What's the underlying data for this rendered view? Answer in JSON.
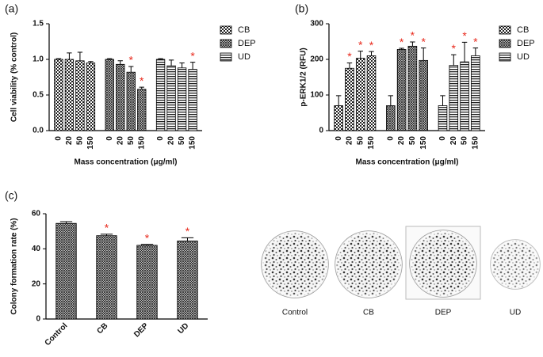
{
  "chart_data": [
    {
      "type": "bar",
      "title": "(a)",
      "y_label": "Cell viability (% control)",
      "x_label": "Mass concentration (μg/ml)",
      "categories": [
        "0",
        "20",
        "50",
        "150"
      ],
      "series": [
        {
          "name": "CB",
          "pattern": "checker",
          "values": [
            1.0,
            1.0,
            0.98,
            0.95
          ],
          "errors": [
            0.01,
            0.09,
            0.12,
            0.02
          ],
          "significant": [
            false,
            false,
            false,
            false
          ]
        },
        {
          "name": "DEP",
          "pattern": "crosshatch",
          "values": [
            1.0,
            0.93,
            0.82,
            0.58
          ],
          "errors": [
            0.01,
            0.05,
            0.08,
            0.03
          ],
          "significant": [
            false,
            false,
            true,
            true
          ]
        },
        {
          "name": "UD",
          "pattern": "horizontal",
          "values": [
            1.0,
            0.91,
            0.88,
            0.86
          ],
          "errors": [
            0.01,
            0.08,
            0.07,
            0.1
          ],
          "significant": [
            false,
            false,
            false,
            true
          ]
        }
      ],
      "significance_label": "*",
      "significance_color": "#e8291c",
      "ylim": [
        0,
        1.5
      ],
      "yticks": [
        {
          "value": 0,
          "label": "0.0"
        },
        0.5,
        {
          "value": 1,
          "label": "1.0"
        },
        1.5
      ],
      "grid": false,
      "legend": "right"
    },
    {
      "type": "bar",
      "title": "(b)",
      "y_label": "p-ERK1/2 (RFU)",
      "x_label": "Mass concentration (μg/ml)",
      "categories": [
        "0",
        "20",
        "50",
        "150"
      ],
      "series": [
        {
          "name": "CB",
          "pattern": "checker",
          "values": [
            70,
            175,
            203,
            210
          ],
          "errors": [
            28,
            15,
            20,
            12
          ],
          "significant": [
            false,
            true,
            true,
            true
          ]
        },
        {
          "name": "DEP",
          "pattern": "crosshatch",
          "values": [
            70,
            228,
            237,
            197
          ],
          "errors": [
            28,
            3,
            12,
            35
          ],
          "significant": [
            false,
            true,
            true,
            true
          ]
        },
        {
          "name": "UD",
          "pattern": "horizontal",
          "values": [
            70,
            183,
            193,
            210
          ],
          "errors": [
            28,
            30,
            55,
            22
          ],
          "significant": [
            false,
            true,
            true,
            true
          ]
        }
      ],
      "significance_label": "*",
      "significance_color": "#e8291c",
      "ylim": [
        0,
        300
      ],
      "yticks": [
        0,
        100,
        200,
        300
      ],
      "grid": false,
      "legend": "right"
    },
    {
      "type": "bar",
      "title": "(c)",
      "y_label": "Colony formation rate (%)",
      "categories": [
        "Control",
        "CB",
        "DEP",
        "UD"
      ],
      "values": [
        54.5,
        47.5,
        42,
        44.5
      ],
      "errors": [
        1,
        0.8,
        0.5,
        1.8
      ],
      "significant": [
        false,
        true,
        true,
        true
      ],
      "pattern": "crosshatch",
      "significance_label": "*",
      "significance_color": "#e8291c",
      "ylim": [
        0,
        60
      ],
      "yticks": [
        0,
        20,
        40,
        60
      ],
      "grid": false
    }
  ],
  "photo_labels": [
    "Control",
    "CB",
    "DEP",
    "UD"
  ]
}
